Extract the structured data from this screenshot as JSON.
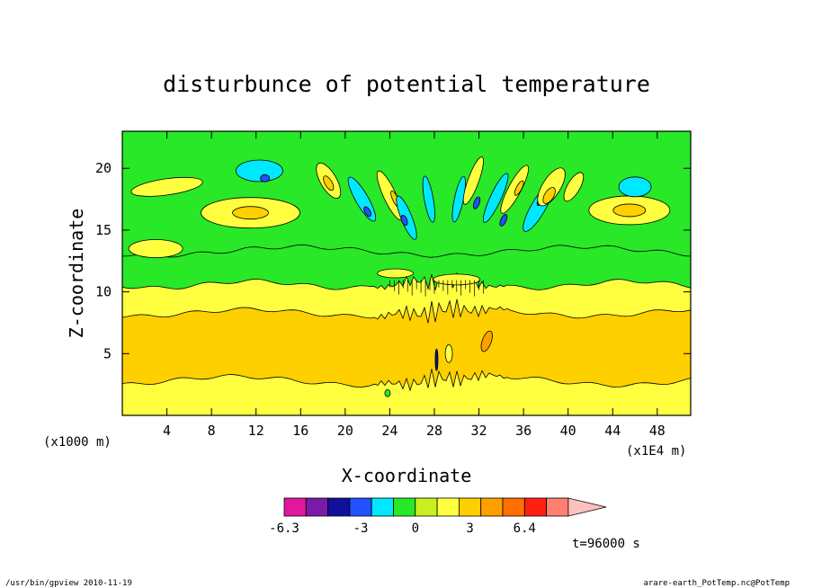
{
  "chart_data": {
    "type": "heatmap",
    "title": "disturbunce of potential temperature",
    "xlabel": "X-coordinate",
    "ylabel": "Z-coordinate",
    "x_unit": "(x1E4 m)",
    "y_unit": "(x1000 m)",
    "x_ticks": [
      4,
      8,
      12,
      16,
      20,
      24,
      28,
      32,
      36,
      40,
      44,
      48
    ],
    "y_ticks": [
      5,
      10,
      15,
      20
    ],
    "xlim": [
      0,
      51
    ],
    "ylim": [
      0,
      23
    ],
    "colorbar": {
      "labels": [
        "-6.3",
        "-3",
        "0",
        "3",
        "6.4"
      ],
      "colors": [
        "#e0189c",
        "#7a1aa8",
        "#10109c",
        "#2050ff",
        "#00e8ff",
        "#28e828",
        "#c8f020",
        "#ffff40",
        "#ffd000",
        "#ffa000",
        "#ff7000",
        "#ff2010",
        "#ff8070",
        "#ffc0c0"
      ]
    },
    "time_label": "t=96000 s",
    "footer_left": "/usr/bin/gpview   2010-11-19",
    "footer_right": "arare-earth_PotTemp.nc@PotTemp"
  }
}
